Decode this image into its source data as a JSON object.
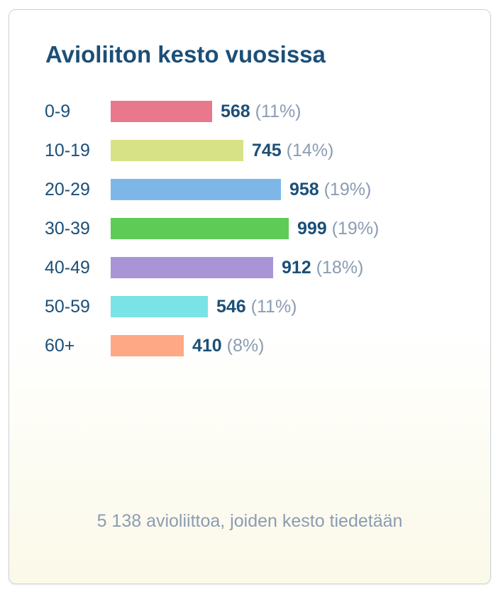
{
  "chart_data": {
    "type": "bar",
    "orientation": "horizontal",
    "title": "Avioliiton kesto vuosissa",
    "categories": [
      "0-9",
      "10-19",
      "20-29",
      "30-39",
      "40-49",
      "50-59",
      "60+"
    ],
    "values": [
      568,
      745,
      958,
      999,
      912,
      546,
      410
    ],
    "percent_labels": [
      "(11%)",
      "(14%)",
      "(19%)",
      "(19%)",
      "(18%)",
      "(11%)",
      "(8%)"
    ],
    "colors": [
      "#e8788c",
      "#d7e286",
      "#7db7e8",
      "#5fcb57",
      "#a995d6",
      "#79e3e6",
      "#ffa886"
    ],
    "xlim": [
      0,
      1000
    ],
    "grid": false,
    "legend": "none"
  },
  "footer": {
    "note": "5 138 avioliittoa, joiden kesto tiedetään"
  }
}
